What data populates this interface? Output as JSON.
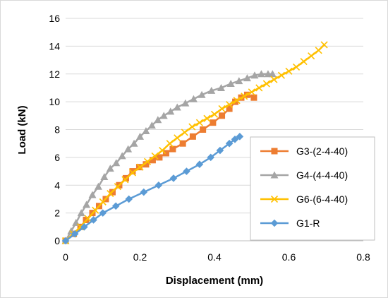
{
  "chart_data": {
    "type": "line",
    "title": "",
    "xlabel": "Displacement (mm)",
    "ylabel": "Load (kN)",
    "xlim": [
      0,
      0.8
    ],
    "ylim": [
      0,
      16
    ],
    "xticks": [
      "0",
      "0.2",
      "0.4",
      "0.6",
      "0.8"
    ],
    "yticks": [
      "0",
      "2",
      "4",
      "6",
      "8",
      "10",
      "12",
      "14",
      "16"
    ],
    "grid": "horizontal",
    "legend_position": "right-center",
    "series": [
      {
        "name": "G3-(2-4-40)",
        "color": "#ED7D31",
        "marker": "square",
        "x": [
          0,
          0.022,
          0.04,
          0.055,
          0.072,
          0.09,
          0.108,
          0.126,
          0.144,
          0.162,
          0.18,
          0.198,
          0.216,
          0.234,
          0.252,
          0.27,
          0.288,
          0.315,
          0.342,
          0.369,
          0.396,
          0.42,
          0.44,
          0.456,
          0.472,
          0.488,
          0.506
        ],
        "y": [
          0,
          0.5,
          1.0,
          1.5,
          2.0,
          2.5,
          3.0,
          3.5,
          4.0,
          4.5,
          5.0,
          5.3,
          5.5,
          5.8,
          6.0,
          6.3,
          6.6,
          7.0,
          7.5,
          8.0,
          8.5,
          9.0,
          9.5,
          10.0,
          10.3,
          10.5,
          10.3
        ]
      },
      {
        "name": "G4-(4-4-40)",
        "color": "#A5A5A5",
        "marker": "triangle",
        "x": [
          0,
          0.015,
          0.028,
          0.042,
          0.056,
          0.072,
          0.088,
          0.104,
          0.12,
          0.136,
          0.152,
          0.168,
          0.184,
          0.2,
          0.216,
          0.232,
          0.248,
          0.264,
          0.282,
          0.3,
          0.322,
          0.344,
          0.366,
          0.392,
          0.418,
          0.444,
          0.466,
          0.488,
          0.508,
          0.526,
          0.544,
          0.556
        ],
        "y": [
          0,
          0.7,
          1.3,
          2.0,
          2.6,
          3.3,
          3.9,
          4.6,
          5.2,
          5.6,
          6.1,
          6.6,
          7.0,
          7.5,
          7.9,
          8.3,
          8.7,
          9.0,
          9.3,
          9.6,
          9.9,
          10.2,
          10.5,
          10.8,
          11.0,
          11.3,
          11.5,
          11.7,
          11.9,
          12.0,
          12.0,
          12.0
        ]
      },
      {
        "name": "G6-(6-4-40)",
        "color": "#FFC000",
        "marker": "x",
        "x": [
          0,
          0.02,
          0.04,
          0.06,
          0.08,
          0.1,
          0.12,
          0.14,
          0.16,
          0.18,
          0.2,
          0.22,
          0.24,
          0.26,
          0.28,
          0.3,
          0.32,
          0.34,
          0.36,
          0.38,
          0.4,
          0.42,
          0.44,
          0.46,
          0.48,
          0.5,
          0.52,
          0.54,
          0.56,
          0.58,
          0.6,
          0.62,
          0.64,
          0.66,
          0.68,
          0.695
        ],
        "y": [
          0,
          0.5,
          1.0,
          1.6,
          2.2,
          2.8,
          3.4,
          3.9,
          4.4,
          4.9,
          5.3,
          5.7,
          6.1,
          6.5,
          7.0,
          7.4,
          7.8,
          8.2,
          8.5,
          8.8,
          9.1,
          9.5,
          9.8,
          10.1,
          10.4,
          10.7,
          11.0,
          11.3,
          11.6,
          11.9,
          12.2,
          12.5,
          12.9,
          13.3,
          13.7,
          14.1
        ]
      },
      {
        "name": "G1-R",
        "color": "#5B9BD5",
        "marker": "diamond",
        "x": [
          0,
          0.025,
          0.05,
          0.075,
          0.1,
          0.135,
          0.17,
          0.21,
          0.25,
          0.29,
          0.325,
          0.36,
          0.39,
          0.415,
          0.44,
          0.455,
          0.468
        ],
        "y": [
          0,
          0.5,
          1.0,
          1.5,
          2.0,
          2.5,
          3.0,
          3.5,
          4.0,
          4.5,
          5.0,
          5.5,
          6.0,
          6.5,
          7.0,
          7.3,
          7.5
        ]
      }
    ]
  }
}
